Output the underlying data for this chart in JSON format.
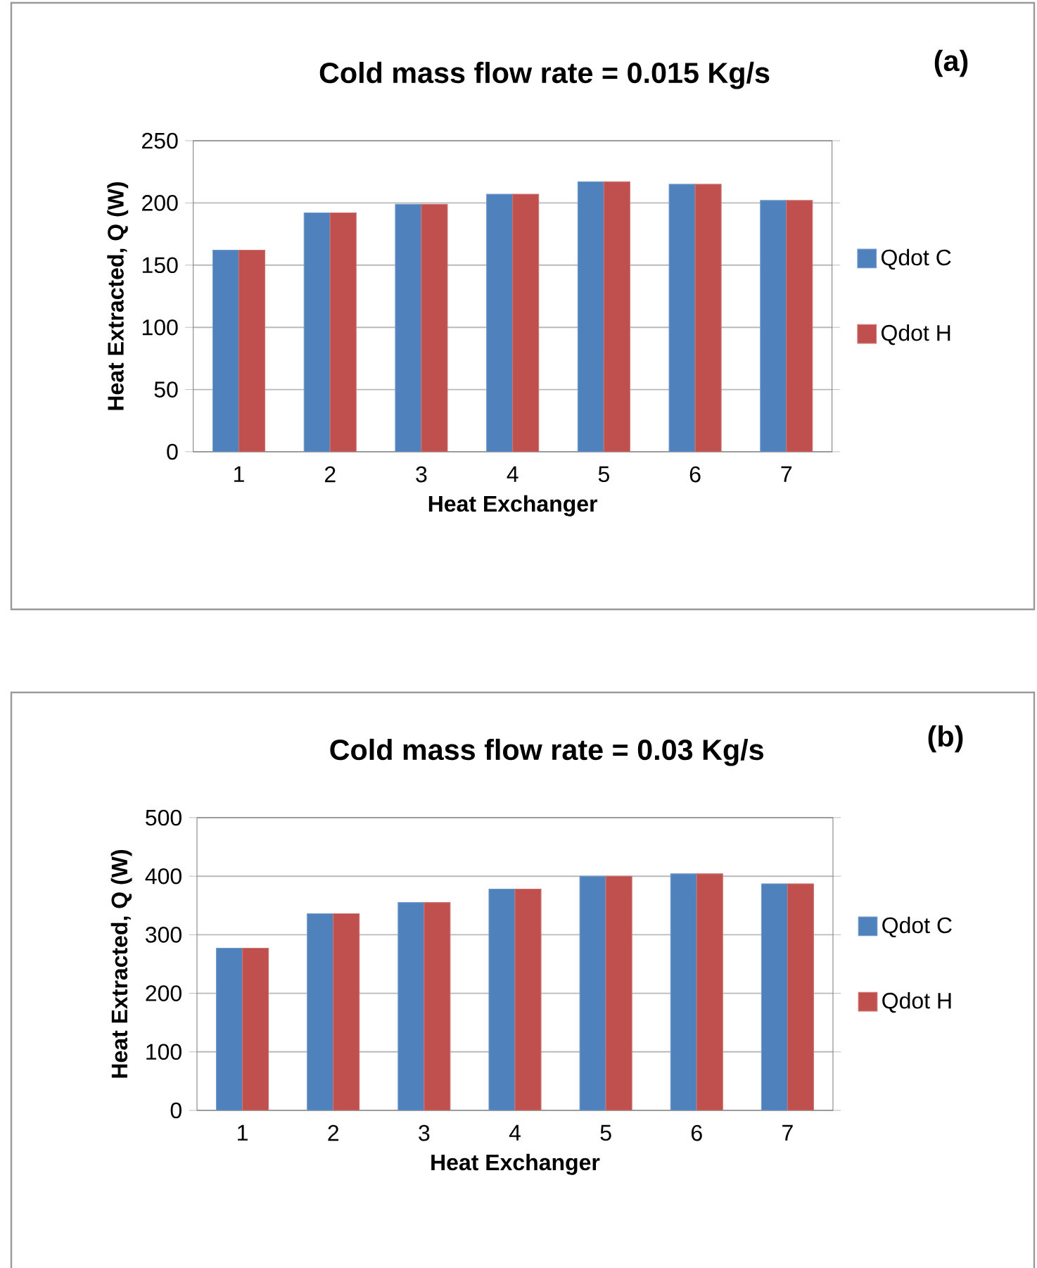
{
  "chart_data": [
    {
      "type": "bar",
      "title": "Cold mass flow rate = 0.015 Kg/s",
      "xlabel": "Heat Exchanger",
      "ylabel": "Heat Extracted, Q (W)",
      "annotations": [
        "(a)"
      ],
      "categories": [
        "1",
        "2",
        "3",
        "4",
        "5",
        "6",
        "7"
      ],
      "series": [
        {
          "name": "Qdot C",
          "color": "#4f81bd",
          "values": [
            162,
            192,
            199,
            207,
            217,
            215,
            202
          ]
        },
        {
          "name": "Qdot H",
          "color": "#c0504d",
          "values": [
            162,
            192,
            199,
            207,
            217,
            215,
            202
          ]
        }
      ],
      "ylim": [
        0,
        250
      ],
      "yticks": [
        0,
        50,
        100,
        150,
        200,
        250
      ],
      "grid": "y",
      "legend": "right"
    },
    {
      "type": "bar",
      "title": "Cold mass flow rate = 0.03 Kg/s",
      "xlabel": "Heat Exchanger",
      "ylabel": "Heat Extracted, Q (W)",
      "annotations": [
        "(b)"
      ],
      "categories": [
        "1",
        "2",
        "3",
        "4",
        "5",
        "6",
        "7"
      ],
      "series": [
        {
          "name": "Qdot C",
          "color": "#4f81bd",
          "values": [
            277,
            336,
            355,
            378,
            400,
            404,
            387
          ]
        },
        {
          "name": "Qdot H",
          "color": "#c0504d",
          "values": [
            277,
            336,
            355,
            378,
            400,
            404,
            387
          ]
        }
      ],
      "ylim": [
        0,
        500
      ],
      "yticks": [
        0,
        100,
        200,
        300,
        400,
        500
      ],
      "grid": "y",
      "legend": "right"
    }
  ]
}
